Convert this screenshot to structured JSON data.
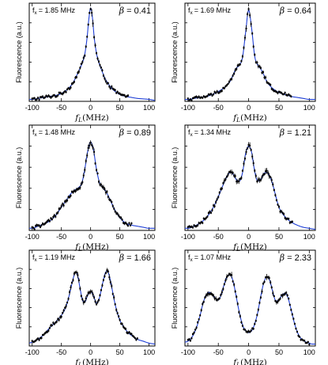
{
  "chart_data": [
    {
      "type": "line",
      "freq_label": "f",
      "freq_sub": "x",
      "freq_value": "= 1.85 MHz",
      "beta_label": "β",
      "beta_value": "= 0.41",
      "ylabel": "Fluorescence (a.u.)",
      "xlabel_symbol": "f",
      "xlabel_sub": "L",
      "xlabel_unit": "(MHz)",
      "xticks": [
        -100,
        -50,
        0,
        50,
        100
      ],
      "xlim": [
        -105,
        110
      ],
      "ylim": [
        0,
        1.0
      ],
      "x": [
        -105,
        -100,
        -90,
        -80,
        -70,
        -60,
        -50,
        -45,
        -40,
        -35,
        -30,
        -25,
        -20,
        -15,
        -10,
        -6,
        -3,
        0,
        3,
        6,
        10,
        15,
        20,
        25,
        30,
        35,
        40,
        45,
        50,
        60,
        70,
        80,
        90,
        100,
        110
      ],
      "y": [
        0.02,
        0.02,
        0.03,
        0.04,
        0.05,
        0.06,
        0.08,
        0.1,
        0.12,
        0.15,
        0.19,
        0.25,
        0.31,
        0.38,
        0.48,
        0.65,
        0.84,
        0.95,
        0.86,
        0.66,
        0.49,
        0.38,
        0.3,
        0.23,
        0.18,
        0.14,
        0.11,
        0.09,
        0.07,
        0.05,
        0.04,
        0.03,
        0.025,
        0.02,
        0.01
      ],
      "data_xlim": [
        -100,
        65
      ],
      "series": [
        {
          "name": "",
          "role": "fit",
          "color": "#1f3fd6"
        },
        {
          "name": "",
          "role": "data",
          "color": "#000000"
        }
      ]
    },
    {
      "type": "line",
      "freq_label": "f",
      "freq_sub": "x",
      "freq_value": "= 1.69 MHz",
      "beta_label": "β",
      "beta_value": "= 0.64",
      "ylabel": "Fluorescence (a.u.)",
      "xlabel_symbol": "f",
      "xlabel_sub": "L",
      "xlabel_unit": "(MHz)",
      "xticks": [
        -100,
        -50,
        0,
        50,
        100
      ],
      "xlim": [
        -105,
        110
      ],
      "ylim": [
        0,
        1.0
      ],
      "x": [
        -105,
        -100,
        -90,
        -80,
        -70,
        -60,
        -50,
        -40,
        -35,
        -30,
        -25,
        -20,
        -15,
        -10,
        -5,
        0,
        5,
        10,
        15,
        20,
        25,
        30,
        35,
        40,
        50,
        60,
        70,
        80,
        90,
        100,
        110
      ],
      "y": [
        0.02,
        0.02,
        0.03,
        0.04,
        0.05,
        0.07,
        0.1,
        0.14,
        0.17,
        0.21,
        0.28,
        0.34,
        0.37,
        0.45,
        0.7,
        0.93,
        0.74,
        0.46,
        0.37,
        0.33,
        0.27,
        0.2,
        0.16,
        0.13,
        0.09,
        0.07,
        0.05,
        0.04,
        0.03,
        0.02,
        0.02
      ],
      "data_xlim": [
        -100,
        70
      ],
      "series": [
        {
          "name": "",
          "role": "fit",
          "color": "#1f3fd6"
        },
        {
          "name": "",
          "role": "data",
          "color": "#000000"
        }
      ]
    },
    {
      "type": "line",
      "freq_label": "f",
      "freq_sub": "x",
      "freq_value": "= 1.48 MHz",
      "beta_label": "β",
      "beta_value": "= 0.89",
      "ylabel": "Fluorescence (a.u.)",
      "xlabel_symbol": "f",
      "xlabel_sub": "L",
      "xlabel_unit": "(MHz)",
      "xticks": [
        -100,
        -50,
        0,
        50,
        100
      ],
      "xlim": [
        -105,
        110
      ],
      "ylim": [
        0,
        1.0
      ],
      "x": [
        -105,
        -100,
        -90,
        -80,
        -70,
        -60,
        -50,
        -40,
        -35,
        -30,
        -25,
        -20,
        -15,
        -10,
        -5,
        0,
        5,
        10,
        15,
        20,
        25,
        30,
        35,
        40,
        50,
        60,
        70,
        80,
        90,
        100,
        110
      ],
      "y": [
        0.02,
        0.02,
        0.04,
        0.06,
        0.09,
        0.14,
        0.22,
        0.3,
        0.34,
        0.37,
        0.39,
        0.41,
        0.45,
        0.58,
        0.75,
        0.84,
        0.76,
        0.58,
        0.46,
        0.41,
        0.38,
        0.33,
        0.27,
        0.21,
        0.12,
        0.07,
        0.05,
        0.04,
        0.03,
        0.02,
        0.02
      ],
      "data_xlim": [
        -100,
        70
      ],
      "series": [
        {
          "name": "",
          "role": "fit",
          "color": "#1f3fd6"
        },
        {
          "name": "",
          "role": "data",
          "color": "#000000"
        }
      ]
    },
    {
      "type": "line",
      "freq_label": "f",
      "freq_sub": "x",
      "freq_value": "= 1.34 MHz",
      "beta_label": "β",
      "beta_value": "= 1.21",
      "ylabel": "Fluorescence (a.u.)",
      "xlabel_symbol": "f",
      "xlabel_sub": "L",
      "xlabel_unit": "(MHz)",
      "xticks": [
        -100,
        -50,
        0,
        50,
        100
      ],
      "xlim": [
        -105,
        110
      ],
      "ylim": [
        0,
        1.0
      ],
      "x": [
        -105,
        -100,
        -90,
        -80,
        -70,
        -60,
        -50,
        -40,
        -35,
        -30,
        -25,
        -20,
        -15,
        -10,
        -5,
        0,
        5,
        10,
        15,
        20,
        25,
        30,
        35,
        40,
        45,
        50,
        60,
        70,
        80,
        90,
        100,
        110
      ],
      "y": [
        0.02,
        0.02,
        0.04,
        0.07,
        0.12,
        0.2,
        0.32,
        0.46,
        0.52,
        0.55,
        0.53,
        0.48,
        0.47,
        0.55,
        0.73,
        0.8,
        0.74,
        0.56,
        0.47,
        0.48,
        0.54,
        0.55,
        0.51,
        0.43,
        0.32,
        0.22,
        0.13,
        0.08,
        0.05,
        0.03,
        0.02,
        0.01
      ],
      "data_xlim": [
        -100,
        72
      ],
      "series": [
        {
          "name": "",
          "role": "fit",
          "color": "#1f3fd6"
        },
        {
          "name": "",
          "role": "data",
          "color": "#000000"
        }
      ]
    },
    {
      "type": "line",
      "freq_label": "f",
      "freq_sub": "x",
      "freq_value": "= 1.19 MHz",
      "beta_label": "β",
      "beta_value": "= 1.66",
      "ylabel": "Fluorescence (a.u.)",
      "xlabel_symbol": "f",
      "xlabel_sub": "L",
      "xlabel_unit": "(MHz)",
      "xticks": [
        -100,
        -50,
        0,
        50,
        100
      ],
      "xlim": [
        -105,
        110
      ],
      "ylim": [
        0,
        1.0
      ],
      "x": [
        -105,
        -100,
        -90,
        -80,
        -70,
        -60,
        -50,
        -45,
        -40,
        -35,
        -30,
        -27,
        -25,
        -22,
        -18,
        -14,
        -10,
        -5,
        0,
        5,
        10,
        15,
        20,
        25,
        28,
        30,
        35,
        40,
        45,
        50,
        60,
        70,
        80,
        90,
        100,
        110
      ],
      "y": [
        0.03,
        0.04,
        0.07,
        0.12,
        0.19,
        0.25,
        0.32,
        0.37,
        0.45,
        0.57,
        0.7,
        0.76,
        0.77,
        0.73,
        0.6,
        0.48,
        0.46,
        0.53,
        0.57,
        0.52,
        0.45,
        0.5,
        0.64,
        0.76,
        0.78,
        0.77,
        0.65,
        0.49,
        0.36,
        0.27,
        0.17,
        0.11,
        0.07,
        0.05,
        0.03,
        0.02
      ],
      "data_xlim": [
        -100,
        80
      ],
      "series": [
        {
          "name": "",
          "role": "fit",
          "color": "#1f3fd6"
        },
        {
          "name": "",
          "role": "data",
          "color": "#000000"
        }
      ]
    },
    {
      "type": "line",
      "freq_label": "f",
      "freq_sub": "x",
      "freq_value": "= 1.07 MHz",
      "beta_label": "β",
      "beta_value": "= 2.33",
      "ylabel": "Fluorescence (a.u.)",
      "xlabel_symbol": "f",
      "xlabel_sub": "L",
      "xlabel_unit": "(MHz)",
      "xticks": [
        -100,
        -50,
        0,
        50,
        100
      ],
      "xlim": [
        -105,
        110
      ],
      "ylim": [
        0,
        1.0
      ],
      "x": [
        -105,
        -100,
        -95,
        -90,
        -85,
        -80,
        -75,
        -70,
        -65,
        -60,
        -55,
        -50,
        -45,
        -40,
        -35,
        -30,
        -25,
        -20,
        -15,
        -10,
        -5,
        0,
        5,
        10,
        15,
        20,
        25,
        30,
        35,
        40,
        45,
        50,
        55,
        60,
        65,
        70,
        75,
        80,
        85,
        90,
        95,
        100,
        105,
        110
      ],
      "y": [
        0.04,
        0.05,
        0.08,
        0.13,
        0.21,
        0.32,
        0.45,
        0.53,
        0.56,
        0.54,
        0.5,
        0.48,
        0.54,
        0.65,
        0.73,
        0.74,
        0.66,
        0.5,
        0.34,
        0.22,
        0.16,
        0.14,
        0.16,
        0.23,
        0.35,
        0.52,
        0.66,
        0.72,
        0.68,
        0.56,
        0.47,
        0.48,
        0.53,
        0.55,
        0.5,
        0.38,
        0.25,
        0.15,
        0.09,
        0.06,
        0.04,
        0.03,
        0.02,
        0.02
      ],
      "data_xlim": [
        -100,
        100
      ],
      "series": [
        {
          "name": "",
          "role": "fit",
          "color": "#1f3fd6"
        },
        {
          "name": "",
          "role": "data",
          "color": "#000000"
        }
      ]
    }
  ]
}
